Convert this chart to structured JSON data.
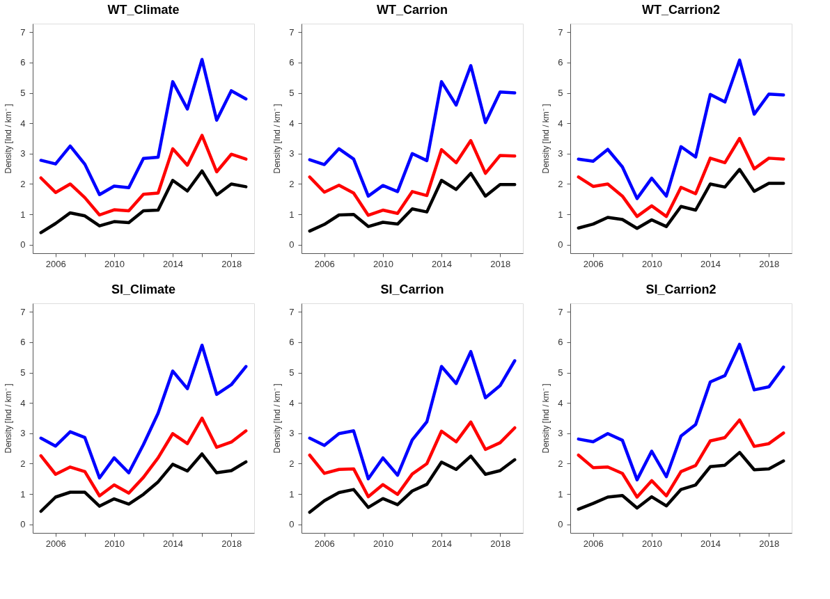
{
  "chart_data": [
    {
      "type": "line",
      "title": "WT_Climate",
      "ylabel": "Density [Ind / km⁻ ]",
      "x": [
        2005,
        2006,
        2007,
        2008,
        2009,
        2010,
        2011,
        2012,
        2013,
        2014,
        2015,
        2016,
        2017,
        2018,
        2019
      ],
      "xlim": [
        2004.44,
        2019.56
      ],
      "xticks": [
        2006,
        {
          "value": 2008,
          "label": null
        },
        2010,
        {
          "value": 2012,
          "label": null
        },
        2014,
        {
          "value": 2016,
          "label": null
        },
        2018
      ],
      "ylim": [
        -0.28,
        7.28
      ],
      "yticks": [
        0,
        1,
        2,
        3,
        4,
        5,
        6,
        7
      ],
      "series": [
        {
          "color": "#0000ff",
          "values": [
            2.78,
            2.66,
            3.25,
            2.65,
            1.65,
            1.93,
            1.88,
            2.84,
            2.88,
            5.37,
            4.47,
            6.1,
            4.1,
            5.07,
            4.8
          ]
        },
        {
          "color": "#ff0000",
          "values": [
            2.2,
            1.72,
            2.0,
            1.55,
            0.98,
            1.15,
            1.12,
            1.66,
            1.7,
            3.16,
            2.62,
            3.6,
            2.4,
            2.98,
            2.82
          ]
        },
        {
          "color": "#000000",
          "values": [
            0.4,
            0.7,
            1.05,
            0.95,
            0.62,
            0.76,
            0.73,
            1.12,
            1.14,
            2.12,
            1.77,
            2.43,
            1.64,
            2.0,
            1.91
          ]
        }
      ]
    },
    {
      "type": "line",
      "title": "WT_Carrion",
      "ylabel": "Density [Ind / km⁻ ]",
      "x": [
        2005,
        2006,
        2007,
        2008,
        2009,
        2010,
        2011,
        2012,
        2013,
        2014,
        2015,
        2016,
        2017,
        2018,
        2019
      ],
      "xlim": [
        2004.44,
        2019.56
      ],
      "xticks": [
        2006,
        {
          "value": 2008,
          "label": null
        },
        2010,
        {
          "value": 2012,
          "label": null
        },
        2014,
        {
          "value": 2016,
          "label": null
        },
        2018
      ],
      "ylim": [
        -0.28,
        7.28
      ],
      "yticks": [
        0,
        1,
        2,
        3,
        4,
        5,
        6,
        7
      ],
      "series": [
        {
          "color": "#0000ff",
          "values": [
            2.8,
            2.64,
            3.16,
            2.82,
            1.6,
            1.95,
            1.75,
            3.0,
            2.77,
            5.37,
            4.6,
            5.9,
            4.02,
            5.03,
            5.0
          ]
        },
        {
          "color": "#ff0000",
          "values": [
            2.23,
            1.73,
            1.96,
            1.7,
            0.97,
            1.14,
            1.03,
            1.75,
            1.62,
            3.13,
            2.7,
            3.43,
            2.35,
            2.94,
            2.92
          ]
        },
        {
          "color": "#000000",
          "values": [
            0.45,
            0.67,
            0.98,
            1.0,
            0.6,
            0.74,
            0.68,
            1.18,
            1.08,
            2.12,
            1.82,
            2.35,
            1.6,
            1.98,
            1.98
          ]
        }
      ]
    },
    {
      "type": "line",
      "title": "WT_Carrion2",
      "ylabel": "Density [Ind / km⁻ ]",
      "x": [
        2005,
        2006,
        2007,
        2008,
        2009,
        2010,
        2011,
        2012,
        2013,
        2014,
        2015,
        2016,
        2017,
        2018,
        2019
      ],
      "xlim": [
        2004.44,
        2019.56
      ],
      "xticks": [
        2006,
        {
          "value": 2008,
          "label": null
        },
        2010,
        {
          "value": 2012,
          "label": null
        },
        2014,
        {
          "value": 2016,
          "label": null
        },
        2018
      ],
      "ylim": [
        -0.28,
        7.28
      ],
      "yticks": [
        0,
        1,
        2,
        3,
        4,
        5,
        6,
        7
      ],
      "series": [
        {
          "color": "#0000ff",
          "values": [
            2.82,
            2.75,
            3.14,
            2.56,
            1.52,
            2.19,
            1.6,
            3.23,
            2.89,
            4.95,
            4.7,
            6.08,
            4.3,
            4.96,
            4.93
          ]
        },
        {
          "color": "#ff0000",
          "values": [
            2.23,
            1.92,
            2.0,
            1.6,
            0.93,
            1.28,
            0.93,
            1.89,
            1.68,
            2.85,
            2.7,
            3.5,
            2.5,
            2.85,
            2.82
          ]
        },
        {
          "color": "#000000",
          "values": [
            0.55,
            0.68,
            0.9,
            0.83,
            0.54,
            0.82,
            0.6,
            1.26,
            1.14,
            2.0,
            1.9,
            2.48,
            1.76,
            2.02,
            2.02
          ]
        }
      ]
    },
    {
      "type": "line",
      "title": "SI_Climate",
      "ylabel": "Density [Ind / km⁻ ]",
      "x": [
        2005,
        2006,
        2007,
        2008,
        2009,
        2010,
        2011,
        2012,
        2013,
        2014,
        2015,
        2016,
        2017,
        2018,
        2019
      ],
      "xlim": [
        2004.44,
        2019.56
      ],
      "xticks": [
        2006,
        {
          "value": 2008,
          "label": null
        },
        2010,
        {
          "value": 2012,
          "label": null
        },
        2014,
        {
          "value": 2016,
          "label": null
        },
        2018
      ],
      "ylim": [
        -0.28,
        7.28
      ],
      "yticks": [
        0,
        1,
        2,
        3,
        4,
        5,
        6,
        7
      ],
      "series": [
        {
          "color": "#0000ff",
          "values": [
            2.84,
            2.58,
            3.05,
            2.86,
            1.53,
            2.19,
            1.7,
            2.63,
            3.66,
            5.05,
            4.47,
            5.9,
            4.28,
            4.6,
            5.2
          ]
        },
        {
          "color": "#ff0000",
          "values": [
            2.26,
            1.65,
            1.89,
            1.74,
            0.94,
            1.3,
            1.03,
            1.55,
            2.19,
            2.99,
            2.66,
            3.5,
            2.54,
            2.71,
            3.08
          ]
        },
        {
          "color": "#000000",
          "values": [
            0.43,
            0.9,
            1.06,
            1.06,
            0.6,
            0.84,
            0.67,
            0.99,
            1.4,
            1.98,
            1.76,
            2.32,
            1.7,
            1.77,
            2.06
          ]
        }
      ]
    },
    {
      "type": "line",
      "title": "SI_Carrion",
      "ylabel": "Density [Ind / km⁻ ]",
      "x": [
        2005,
        2006,
        2007,
        2008,
        2009,
        2010,
        2011,
        2012,
        2013,
        2014,
        2015,
        2016,
        2017,
        2018,
        2019
      ],
      "xlim": [
        2004.44,
        2019.56
      ],
      "xticks": [
        2006,
        {
          "value": 2008,
          "label": null
        },
        2010,
        {
          "value": 2012,
          "label": null
        },
        2014,
        {
          "value": 2016,
          "label": null
        },
        2018
      ],
      "ylim": [
        -0.28,
        7.28
      ],
      "yticks": [
        0,
        1,
        2,
        3,
        4,
        5,
        6,
        7
      ],
      "series": [
        {
          "color": "#0000ff",
          "values": [
            2.84,
            2.6,
            2.99,
            3.08,
            1.5,
            2.19,
            1.62,
            2.78,
            3.38,
            5.2,
            4.64,
            5.69,
            4.17,
            4.57,
            5.39
          ]
        },
        {
          "color": "#ff0000",
          "values": [
            2.28,
            1.68,
            1.81,
            1.83,
            0.91,
            1.31,
            0.99,
            1.66,
            2.0,
            3.07,
            2.72,
            3.37,
            2.47,
            2.69,
            3.18
          ]
        },
        {
          "color": "#000000",
          "values": [
            0.4,
            0.78,
            1.05,
            1.15,
            0.56,
            0.85,
            0.65,
            1.1,
            1.32,
            2.05,
            1.81,
            2.25,
            1.65,
            1.77,
            2.13
          ]
        }
      ]
    },
    {
      "type": "line",
      "title": "SI_Carrion2",
      "ylabel": "Density [Ind / km⁻ ]",
      "x": [
        2005,
        2006,
        2007,
        2008,
        2009,
        2010,
        2011,
        2012,
        2013,
        2014,
        2015,
        2016,
        2017,
        2018,
        2019
      ],
      "xlim": [
        2004.44,
        2019.56
      ],
      "xticks": [
        2006,
        {
          "value": 2008,
          "label": null
        },
        2010,
        {
          "value": 2012,
          "label": null
        },
        2014,
        {
          "value": 2016,
          "label": null
        },
        2018
      ],
      "ylim": [
        -0.28,
        7.28
      ],
      "yticks": [
        0,
        1,
        2,
        3,
        4,
        5,
        6,
        7
      ],
      "series": [
        {
          "color": "#0000ff",
          "values": [
            2.81,
            2.72,
            2.99,
            2.77,
            1.47,
            2.41,
            1.57,
            2.91,
            3.29,
            4.69,
            4.9,
            5.93,
            4.43,
            4.53,
            5.18
          ]
        },
        {
          "color": "#ff0000",
          "values": [
            2.28,
            1.87,
            1.89,
            1.68,
            0.9,
            1.44,
            0.94,
            1.74,
            1.94,
            2.75,
            2.86,
            3.44,
            2.57,
            2.66,
            3.01
          ]
        },
        {
          "color": "#000000",
          "values": [
            0.5,
            0.69,
            0.9,
            0.95,
            0.54,
            0.91,
            0.61,
            1.15,
            1.3,
            1.9,
            1.95,
            2.37,
            1.8,
            1.83,
            2.09
          ]
        }
      ]
    }
  ]
}
